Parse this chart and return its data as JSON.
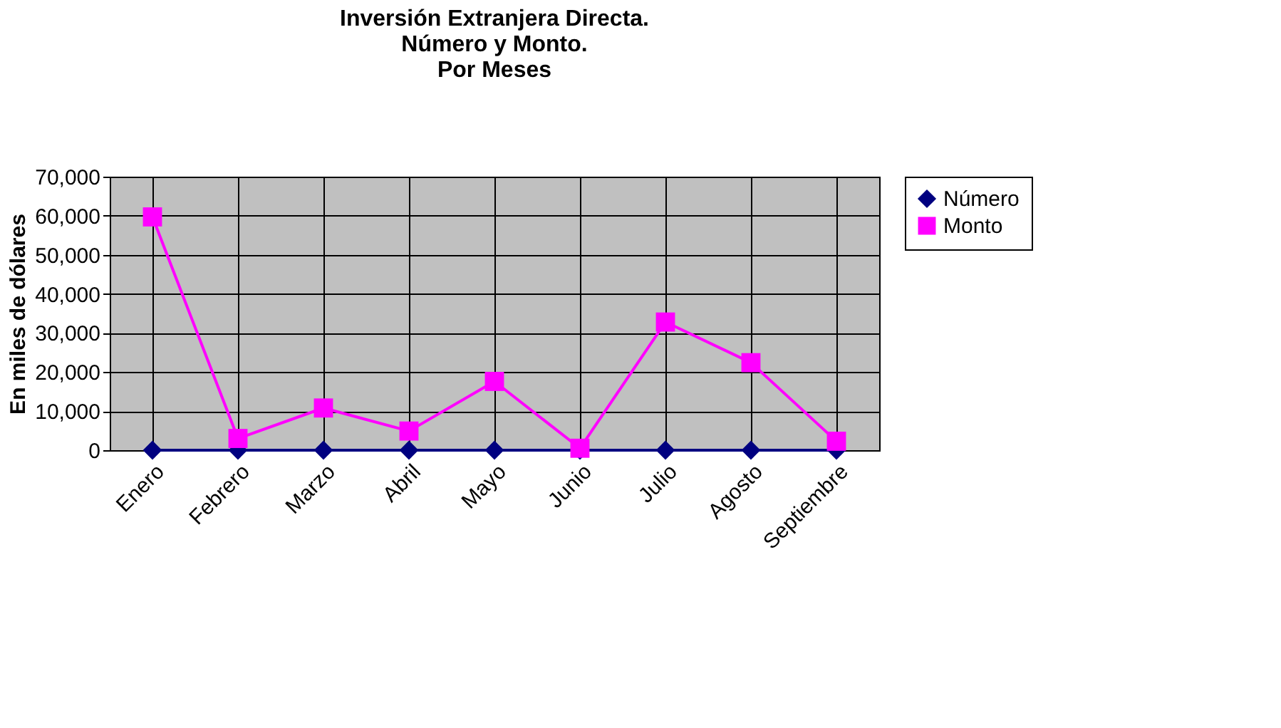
{
  "chart_data": {
    "type": "line",
    "title": "Inversión Extranjera Directa.\nNúmero y Monto.\nPor Meses",
    "ylabel": "En miles de dólares",
    "categories": [
      "Enero",
      "Febrero",
      "Marzo",
      "Abril",
      "Mayo",
      "Junio",
      "Julio",
      "Agosto",
      "Septiembre"
    ],
    "series": [
      {
        "name": "Número",
        "color": "#000080",
        "marker": "diamond",
        "values": [
          0,
          0,
          0,
          0,
          0,
          0,
          0,
          0,
          0
        ]
      },
      {
        "name": "Monto",
        "color": "#ff00ff",
        "marker": "square",
        "values": [
          59700,
          3000,
          10800,
          4900,
          17600,
          500,
          32800,
          22400,
          2300
        ]
      }
    ],
    "ylim": [
      0,
      70000
    ],
    "yticks": [
      0,
      {
        "value": 10000,
        "label": "10,000"
      },
      {
        "value": 20000,
        "label": "20,000"
      },
      {
        "value": 30000,
        "label": "30,000"
      },
      {
        "value": 40000,
        "label": "40,000"
      },
      {
        "value": 50000,
        "label": "50,000"
      },
      {
        "value": 60000,
        "label": "60,000"
      },
      {
        "value": 70000,
        "label": "70,000"
      }
    ],
    "grid": true,
    "legend": "right"
  }
}
